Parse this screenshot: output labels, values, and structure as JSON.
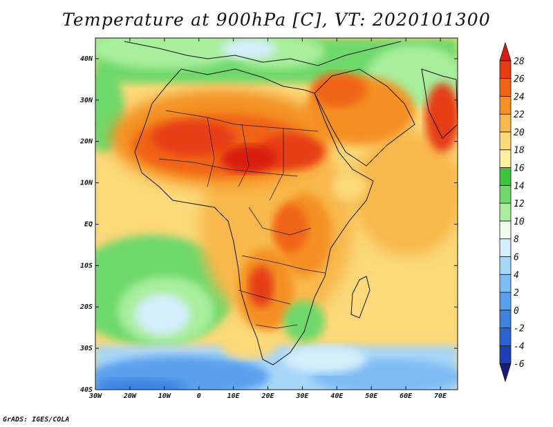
{
  "title": "Temperature at 900hPa [C], VT: 2020101300",
  "credit": "GrADS: IGES/COLA",
  "map": {
    "lon_range": [
      -30,
      75
    ],
    "lat_range": [
      -40,
      45
    ],
    "x_ticks": [
      "30W",
      "20W",
      "10W",
      "0",
      "10E",
      "20E",
      "30E",
      "40E",
      "50E",
      "60E",
      "70E"
    ],
    "y_ticks": [
      "40S",
      "30S",
      "20S",
      "10S",
      "EQ",
      "10N",
      "20N",
      "30N",
      "40N"
    ]
  },
  "colorbar": {
    "labels": [
      "-6",
      "-4",
      "-2",
      "0",
      "2",
      "4",
      "6",
      "8",
      "10",
      "12",
      "14",
      "16",
      "18",
      "20",
      "22",
      "24",
      "26",
      "28"
    ],
    "colors": [
      "#1a1a78",
      "#1f3fb8",
      "#2a64d2",
      "#3c82e0",
      "#5aa0ee",
      "#7ebcf4",
      "#a6d6fa",
      "#d4eefc",
      "#f0fcf0",
      "#a8ee9c",
      "#6ed86a",
      "#3cc43c",
      "#fff0a0",
      "#fbd878",
      "#f8b84c",
      "#f49024",
      "#f06414",
      "#e63c14",
      "#d81e0e"
    ]
  }
}
